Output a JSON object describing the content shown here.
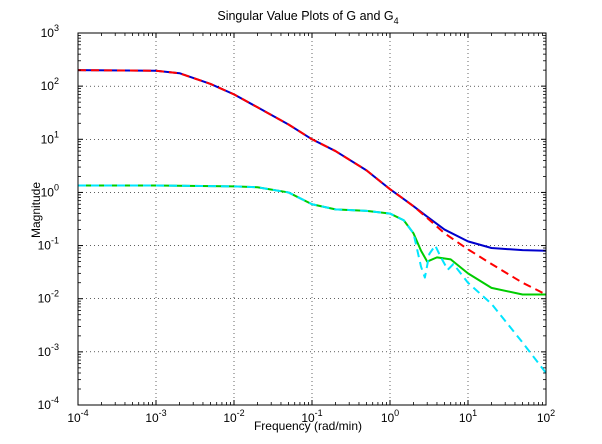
{
  "chart_data": {
    "type": "line",
    "title": "Singular Value Plots of G and G",
    "title_subscript": "4",
    "xlabel": "Frequency (rad/min)",
    "ylabel": "Magnitude",
    "xscale": "log",
    "yscale": "log",
    "xlim": [
      0.0001,
      100
    ],
    "ylim": [
      0.0001,
      1000
    ],
    "x_ticks": [
      {
        "value": 0.0001,
        "base": "10",
        "exp": "-4"
      },
      {
        "value": 0.001,
        "base": "10",
        "exp": "-3"
      },
      {
        "value": 0.01,
        "base": "10",
        "exp": "-2"
      },
      {
        "value": 0.1,
        "base": "10",
        "exp": "-1"
      },
      {
        "value": 1,
        "base": "10",
        "exp": "0"
      },
      {
        "value": 10,
        "base": "10",
        "exp": "1"
      },
      {
        "value": 100,
        "base": "10",
        "exp": "2"
      }
    ],
    "y_ticks": [
      {
        "value": 0.0001,
        "base": "10",
        "exp": "-4"
      },
      {
        "value": 0.001,
        "base": "10",
        "exp": "-3"
      },
      {
        "value": 0.01,
        "base": "10",
        "exp": "-2"
      },
      {
        "value": 0.1,
        "base": "10",
        "exp": "-1"
      },
      {
        "value": 1,
        "base": "10",
        "exp": "0"
      },
      {
        "value": 10,
        "base": "10",
        "exp": "1"
      },
      {
        "value": 100,
        "base": "10",
        "exp": "2"
      },
      {
        "value": 1000,
        "base": "10",
        "exp": "3"
      }
    ],
    "grid": true,
    "series": [
      {
        "color": "#0000cc",
        "style": "solid",
        "points": [
          [
            0.0001,
            200
          ],
          [
            0.001,
            195
          ],
          [
            0.002,
            175
          ],
          [
            0.005,
            110
          ],
          [
            0.01,
            70
          ],
          [
            0.02,
            40
          ],
          [
            0.05,
            19
          ],
          [
            0.1,
            10
          ],
          [
            0.2,
            6
          ],
          [
            0.5,
            2.6
          ],
          [
            1,
            1.15
          ],
          [
            1.5,
            0.75
          ],
          [
            2,
            0.55
          ],
          [
            3,
            0.35
          ],
          [
            5,
            0.2
          ],
          [
            10,
            0.12
          ],
          [
            20,
            0.09
          ],
          [
            50,
            0.082
          ],
          [
            100,
            0.08
          ]
        ]
      },
      {
        "color": "#ff0000",
        "style": "dashed",
        "points": [
          [
            0.0001,
            200
          ],
          [
            0.001,
            195
          ],
          [
            0.002,
            175
          ],
          [
            0.005,
            110
          ],
          [
            0.01,
            70
          ],
          [
            0.02,
            40
          ],
          [
            0.05,
            19
          ],
          [
            0.1,
            10
          ],
          [
            0.2,
            6
          ],
          [
            0.5,
            2.6
          ],
          [
            1,
            1.15
          ],
          [
            1.5,
            0.75
          ],
          [
            2,
            0.55
          ],
          [
            3,
            0.33
          ],
          [
            5,
            0.17
          ],
          [
            10,
            0.085
          ],
          [
            20,
            0.045
          ],
          [
            50,
            0.02
          ],
          [
            100,
            0.012
          ]
        ]
      },
      {
        "color": "#00cc00",
        "style": "solid",
        "points": [
          [
            0.0001,
            1.35
          ],
          [
            0.001,
            1.35
          ],
          [
            0.01,
            1.3
          ],
          [
            0.02,
            1.25
          ],
          [
            0.05,
            1.0
          ],
          [
            0.1,
            0.6
          ],
          [
            0.2,
            0.48
          ],
          [
            0.5,
            0.45
          ],
          [
            1,
            0.4
          ],
          [
            1.5,
            0.3
          ],
          [
            2,
            0.17
          ],
          [
            2.5,
            0.08
          ],
          [
            3,
            0.05
          ],
          [
            4,
            0.06
          ],
          [
            6,
            0.055
          ],
          [
            10,
            0.03
          ],
          [
            20,
            0.016
          ],
          [
            50,
            0.012
          ],
          [
            100,
            0.012
          ]
        ]
      },
      {
        "color": "#00e5ff",
        "style": "dashed",
        "points": [
          [
            0.0001,
            1.35
          ],
          [
            0.001,
            1.35
          ],
          [
            0.01,
            1.3
          ],
          [
            0.02,
            1.25
          ],
          [
            0.05,
            1.0
          ],
          [
            0.1,
            0.6
          ],
          [
            0.2,
            0.48
          ],
          [
            0.5,
            0.45
          ],
          [
            1,
            0.4
          ],
          [
            1.5,
            0.3
          ],
          [
            2,
            0.17
          ],
          [
            2.5,
            0.04
          ],
          [
            2.8,
            0.025
          ],
          [
            3.2,
            0.07
          ],
          [
            3.8,
            0.1
          ],
          [
            4.5,
            0.06
          ],
          [
            5.5,
            0.035
          ],
          [
            6.5,
            0.045
          ],
          [
            10,
            0.02
          ],
          [
            20,
            0.008
          ],
          [
            50,
            0.0015
          ],
          [
            100,
            0.0004
          ]
        ]
      }
    ]
  }
}
